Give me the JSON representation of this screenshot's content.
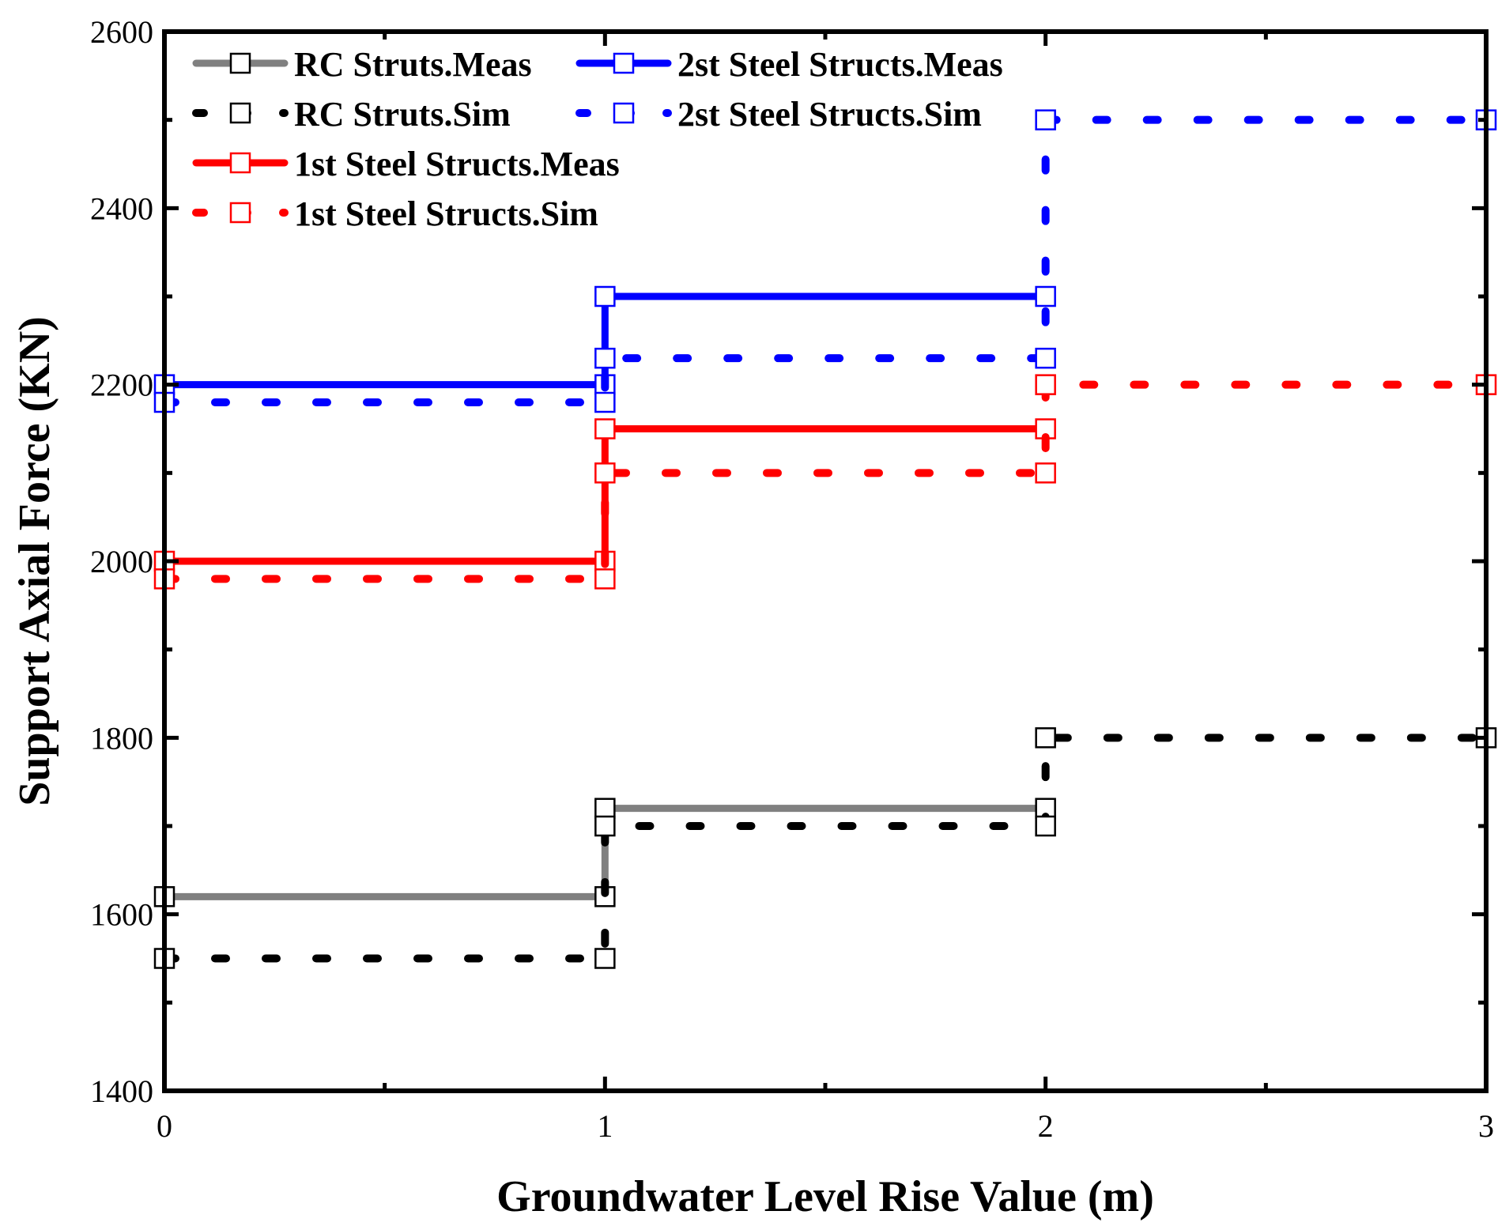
{
  "chart_data": {
    "type": "line",
    "step": "post",
    "xlabel": "Groundwater Level Rise Value (m)",
    "ylabel": "Support Axial Force (KN)",
    "xlim": [
      0,
      3
    ],
    "ylim": [
      1400,
      2600
    ],
    "xticks": [
      0,
      1,
      2,
      3
    ],
    "yticks": [
      1400,
      1600,
      1800,
      2000,
      2200,
      2400,
      2600
    ],
    "grid": false,
    "legend_position": "top-left",
    "series": [
      {
        "name": "RC Struts.Meas",
        "color": "#808080",
        "style": "solid",
        "x": [
          0,
          1,
          2
        ],
        "y": [
          1620,
          1720,
          1720
        ]
      },
      {
        "name": "RC Struts.Sim",
        "color": "#000000",
        "style": "dotted",
        "x": [
          0,
          1,
          2,
          3
        ],
        "y": [
          1550,
          1700,
          1800,
          1800
        ]
      },
      {
        "name": "1st Steel Structs.Meas",
        "color": "#ff0000",
        "style": "solid",
        "x": [
          0,
          1,
          2
        ],
        "y": [
          2000,
          2150,
          2150
        ]
      },
      {
        "name": "1st Steel Structs.Sim",
        "color": "#ff0000",
        "style": "dotted",
        "x": [
          0,
          1,
          2,
          3
        ],
        "y": [
          1980,
          2100,
          2200,
          2200
        ]
      },
      {
        "name": "2st Steel Structs.Meas",
        "color": "#0000ff",
        "style": "solid",
        "x": [
          0,
          1,
          2
        ],
        "y": [
          2200,
          2300,
          2300
        ]
      },
      {
        "name": "2st Steel Structs.Sim",
        "color": "#0000ff",
        "style": "dotted",
        "x": [
          0,
          1,
          2,
          3
        ],
        "y": [
          2180,
          2230,
          2500,
          2500
        ]
      }
    ]
  }
}
